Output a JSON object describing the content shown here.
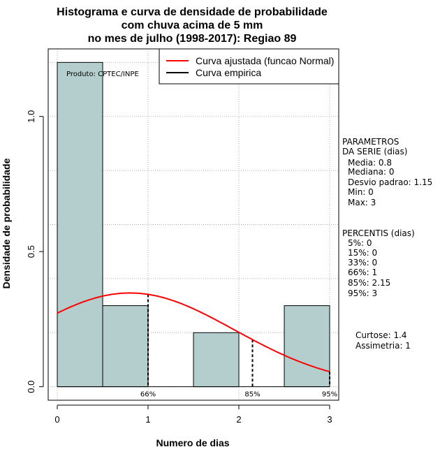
{
  "chart_data": {
    "type": "bar",
    "title_lines": [
      "Histograma e curva de densidade de probabilidade",
      "com chuva acima de 5 mm",
      "no mes de julho (1998-2017): Regiao 89"
    ],
    "xlabel": "Numero de dias",
    "ylabel": "Densidade de probabilidade",
    "xlim": [
      -0.1,
      3.1
    ],
    "ylim": [
      -0.05,
      1.25
    ],
    "xticks": [
      "0",
      "1",
      "2",
      "3"
    ],
    "xtick_values": [
      0,
      1,
      2,
      3
    ],
    "yticks": [
      "0.0",
      "0.5",
      "1.0"
    ],
    "ytick_values": [
      0.0,
      0.5,
      1.0
    ],
    "grid": true,
    "histogram": {
      "bins": [
        {
          "from": 0.0,
          "to": 0.5,
          "density": 1.2
        },
        {
          "from": 0.5,
          "to": 1.0,
          "density": 0.3
        },
        {
          "from": 1.0,
          "to": 1.5,
          "density": 0.0
        },
        {
          "from": 1.5,
          "to": 2.0,
          "density": 0.2
        },
        {
          "from": 2.0,
          "to": 2.5,
          "density": 0.0
        },
        {
          "from": 2.5,
          "to": 3.0,
          "density": 0.3
        }
      ],
      "fill": "#b4cdcd"
    },
    "fitted_curve": {
      "name": "Curva ajustada (funcao Normal)",
      "color": "#ff0000",
      "mean": 0.8,
      "sd": 1.15,
      "x_from": 0,
      "x_to": 3
    },
    "empirical_curve": {
      "name": "Curva empirica",
      "color": "#000000"
    },
    "percentile_markers": [
      {
        "label": "66%",
        "x": 1.0
      },
      {
        "label": "85%",
        "x": 2.15
      },
      {
        "label": "95%",
        "x": 3.0
      }
    ],
    "legend_position": "top-right",
    "product_label": "Produto: CPTEC/INPE"
  },
  "stats_panel": {
    "parametros_title": [
      "PARAMETROS",
      "DA SERIE (dias)"
    ],
    "parametros": [
      "Media: 0.8",
      "Mediana: 0",
      "Desvio padrao: 1.15",
      "Min: 0",
      "Max: 3"
    ],
    "percentis_title": "PERCENTIS (dias)",
    "percentis": [
      "5%: 0",
      "15%: 0",
      "33%: 0",
      "66%: 1",
      "85%: 2.15",
      "95%: 3"
    ],
    "shape": [
      "Curtose: 1.4",
      "Assimetria: 1"
    ]
  }
}
